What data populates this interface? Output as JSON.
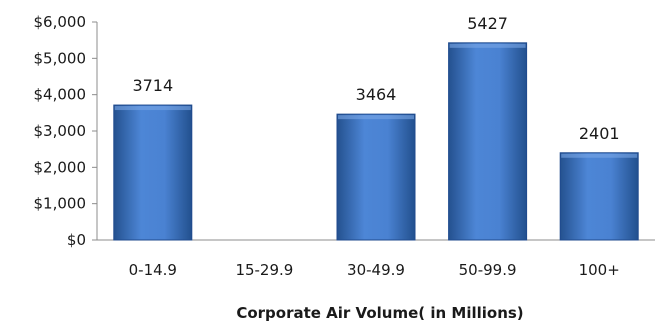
{
  "chart_data": {
    "type": "bar",
    "title": "",
    "xlabel": "Corporate Air Volume( in Millions)",
    "ylabel": "",
    "categories": [
      "0-14.9",
      "15-29.9",
      "30-49.9",
      "50-99.9",
      "100+"
    ],
    "values": [
      3714,
      null,
      3464,
      5427,
      2401
    ],
    "data_labels": [
      "3714",
      "",
      "3464",
      "5427",
      "2401"
    ],
    "ylim": [
      0,
      6000
    ],
    "yticks": [
      0,
      1000,
      2000,
      3000,
      4000,
      5000,
      6000
    ],
    "ytick_labels": [
      "$0",
      "$1,000",
      "$2,000",
      "$3,000",
      "$4,000",
      "$5,000",
      "$6,000"
    ],
    "grid": false,
    "legend": "none",
    "bar_color": "#3a6fc4",
    "bar_edge_color": "#1f4a8e"
  }
}
